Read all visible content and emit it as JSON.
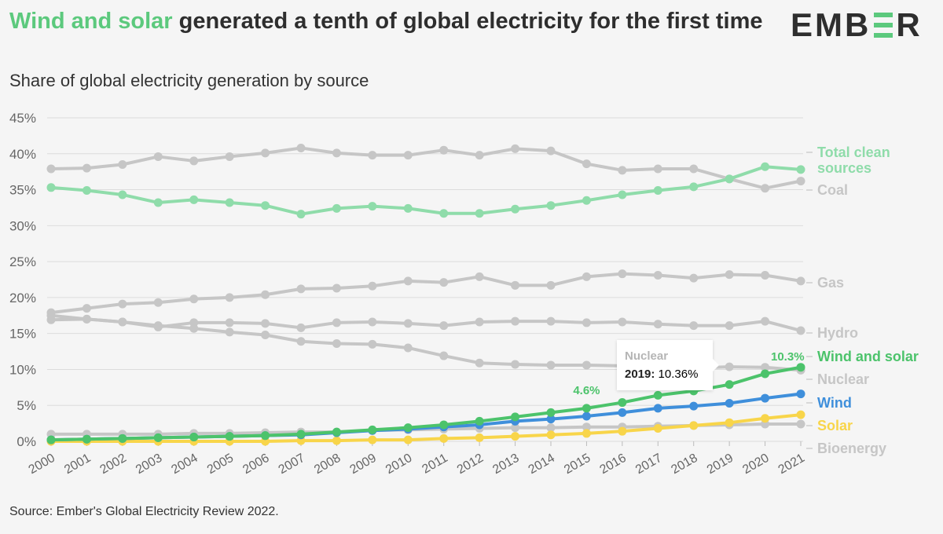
{
  "header": {
    "title_highlight": "Wind and solar",
    "title_rest": " generated a tenth of global electricity for the first time",
    "subtitle": "Share of global electricity generation by source",
    "logo": "EMBER"
  },
  "footer": {
    "source": "Source: Ember's Global Electricity Review 2022."
  },
  "tooltip": {
    "series": "Nuclear",
    "year": "2019:",
    "value": " 10.36%"
  },
  "colors": {
    "grey": "#c6c6c6",
    "clean": "#8fdcaa",
    "wind_solar": "#4cc36b",
    "wind": "#3f8fdb",
    "solar": "#f8d54a",
    "title_accent": "#5cc97d"
  },
  "chart_data": {
    "type": "line",
    "title": "Wind and solar generated a tenth of global electricity for the first time",
    "subtitle": "Share of global electricity generation by source",
    "x": [
      2000,
      2001,
      2002,
      2003,
      2004,
      2005,
      2006,
      2007,
      2008,
      2009,
      2010,
      2011,
      2012,
      2013,
      2014,
      2015,
      2016,
      2017,
      2018,
      2019,
      2020,
      2021
    ],
    "ylim": [
      0,
      45
    ],
    "yticks": [
      "0%",
      "5%",
      "10%",
      "15%",
      "20%",
      "25%",
      "30%",
      "35%",
      "40%",
      "45%"
    ],
    "grid": true,
    "legend": "right-end labels",
    "series": [
      {
        "name": "Coal",
        "color": "#c6c6c6",
        "values": [
          37.9,
          38.0,
          38.5,
          39.6,
          39.0,
          39.6,
          40.1,
          40.8,
          40.1,
          39.8,
          39.8,
          40.5,
          39.8,
          40.7,
          40.4,
          38.6,
          37.7,
          37.9,
          37.9,
          36.5,
          35.2,
          36.2
        ]
      },
      {
        "name": "Total clean sources",
        "color": "#8fdcaa",
        "values": [
          35.3,
          34.9,
          34.3,
          33.2,
          33.6,
          33.2,
          32.8,
          31.6,
          32.4,
          32.7,
          32.4,
          31.7,
          31.7,
          32.3,
          32.8,
          33.5,
          34.3,
          34.9,
          35.4,
          36.5,
          38.2,
          37.8
        ]
      },
      {
        "name": "Gas",
        "color": "#c6c6c6",
        "values": [
          17.9,
          18.5,
          19.1,
          19.3,
          19.8,
          20.0,
          20.4,
          21.2,
          21.3,
          21.6,
          22.3,
          22.1,
          22.9,
          21.7,
          21.7,
          22.9,
          23.3,
          23.1,
          22.7,
          23.2,
          23.1,
          22.3
        ]
      },
      {
        "name": "Hydro",
        "color": "#c6c6c6",
        "values": [
          16.9,
          17.0,
          16.6,
          15.9,
          16.5,
          16.5,
          16.4,
          15.8,
          16.5,
          16.6,
          16.4,
          16.1,
          16.6,
          16.7,
          16.7,
          16.5,
          16.6,
          16.3,
          16.1,
          16.1,
          16.7,
          15.4
        ]
      },
      {
        "name": "Nuclear",
        "color": "#c6c6c6",
        "values": [
          17.5,
          17.0,
          16.6,
          16.1,
          15.7,
          15.2,
          14.8,
          13.9,
          13.6,
          13.5,
          13.0,
          11.9,
          10.9,
          10.7,
          10.6,
          10.6,
          10.5,
          10.4,
          10.2,
          10.36,
          10.3,
          9.9
        ]
      },
      {
        "name": "Bioenergy",
        "color": "#c6c6c6",
        "values": [
          1.0,
          1.0,
          1.0,
          1.0,
          1.1,
          1.1,
          1.2,
          1.3,
          1.3,
          1.5,
          1.6,
          1.7,
          1.8,
          1.9,
          1.9,
          2.0,
          2.0,
          2.1,
          2.2,
          2.3,
          2.4,
          2.4
        ]
      },
      {
        "name": "Solar",
        "color": "#f8d54a",
        "values": [
          0.0,
          0.0,
          0.0,
          0.0,
          0.0,
          0.0,
          0.0,
          0.1,
          0.1,
          0.2,
          0.2,
          0.4,
          0.5,
          0.7,
          0.9,
          1.1,
          1.4,
          1.8,
          2.2,
          2.6,
          3.2,
          3.7
        ]
      },
      {
        "name": "Wind",
        "color": "#3f8fdb",
        "values": [
          0.2,
          0.3,
          0.4,
          0.5,
          0.6,
          0.7,
          0.8,
          0.9,
          1.2,
          1.5,
          1.7,
          2.0,
          2.3,
          2.8,
          3.1,
          3.5,
          4.0,
          4.6,
          4.9,
          5.3,
          6.0,
          6.6
        ]
      },
      {
        "name": "Wind and solar",
        "color": "#4cc36b",
        "values": [
          0.2,
          0.3,
          0.4,
          0.5,
          0.6,
          0.7,
          0.8,
          1.0,
          1.3,
          1.6,
          1.9,
          2.3,
          2.8,
          3.4,
          4.0,
          4.6,
          5.4,
          6.4,
          7.0,
          7.9,
          9.4,
          10.3
        ]
      }
    ],
    "end_labels": [
      {
        "text": "Total clean sources",
        "lines": [
          "Total clean",
          "sources"
        ],
        "color": "#8fdcaa"
      },
      {
        "text": "Coal",
        "color": "#c6c6c6"
      },
      {
        "text": "Gas",
        "color": "#c6c6c6"
      },
      {
        "text": "Hydro",
        "color": "#c6c6c6"
      },
      {
        "text": "Wind and solar",
        "color": "#4cc36b"
      },
      {
        "text": "Nuclear",
        "color": "#c6c6c6"
      },
      {
        "text": "Wind",
        "color": "#3f8fdb"
      },
      {
        "text": "Solar",
        "color": "#f8d54a"
      },
      {
        "text": "Bioenergy",
        "color": "#c6c6c6"
      }
    ],
    "annotations": [
      {
        "text": "4.6%",
        "x": 2015,
        "series": "Wind and solar"
      },
      {
        "text": "10.3%",
        "x": 2021,
        "series": "Wind and solar"
      }
    ]
  }
}
